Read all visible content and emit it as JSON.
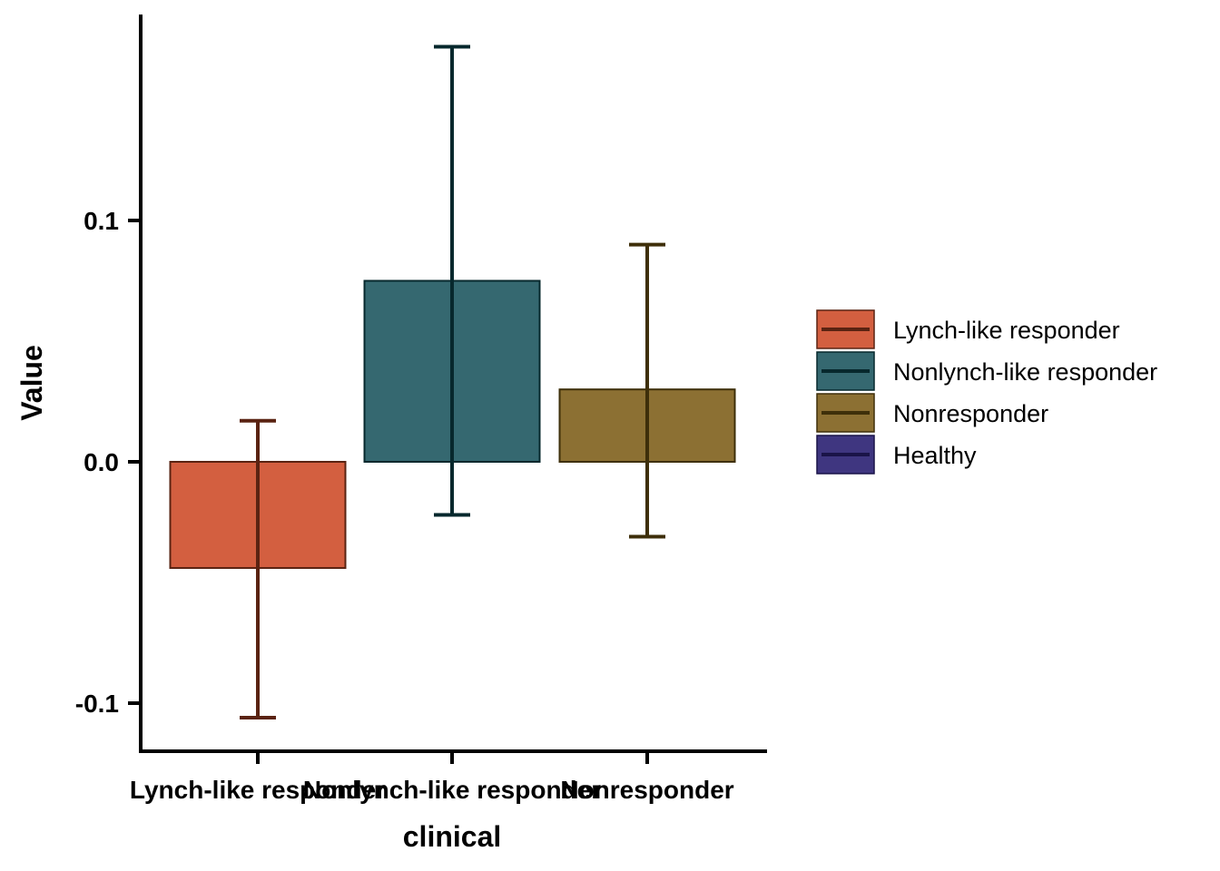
{
  "chart_data": {
    "type": "bar",
    "xlabel": "clinical",
    "ylabel": "Value",
    "ylim": [
      -0.12,
      0.185
    ],
    "yticks": [
      {
        "value": -0.1,
        "label": "-0.1"
      },
      {
        "value": 0.0,
        "label": "0.0"
      },
      {
        "value": 0.1,
        "label": "0.1"
      }
    ],
    "categories": [
      "Lynch-like responder",
      "Nonlynch-like responder",
      "Nonresponder"
    ],
    "values": [
      -0.044,
      0.075,
      0.03
    ],
    "error_low": [
      -0.106,
      -0.022,
      -0.031
    ],
    "error_high": [
      0.017,
      0.172,
      0.09
    ],
    "fill_colors": [
      "#d35f40",
      "#356870",
      "#8c7033"
    ],
    "error_colors": [
      "#5a2312",
      "#07282d",
      "#3e2f0a"
    ],
    "grid": false,
    "legend_position": "right",
    "legend": [
      {
        "label": "Lynch-like responder",
        "fill": "#d35f40",
        "line": "#5a2312"
      },
      {
        "label": "Nonlynch-like responder",
        "fill": "#356870",
        "line": "#07282d"
      },
      {
        "label": "Nonresponder",
        "fill": "#8c7033",
        "line": "#3e2f0a"
      },
      {
        "label": "Healthy",
        "fill": "#3f3680",
        "line": "#1a1448"
      }
    ]
  }
}
